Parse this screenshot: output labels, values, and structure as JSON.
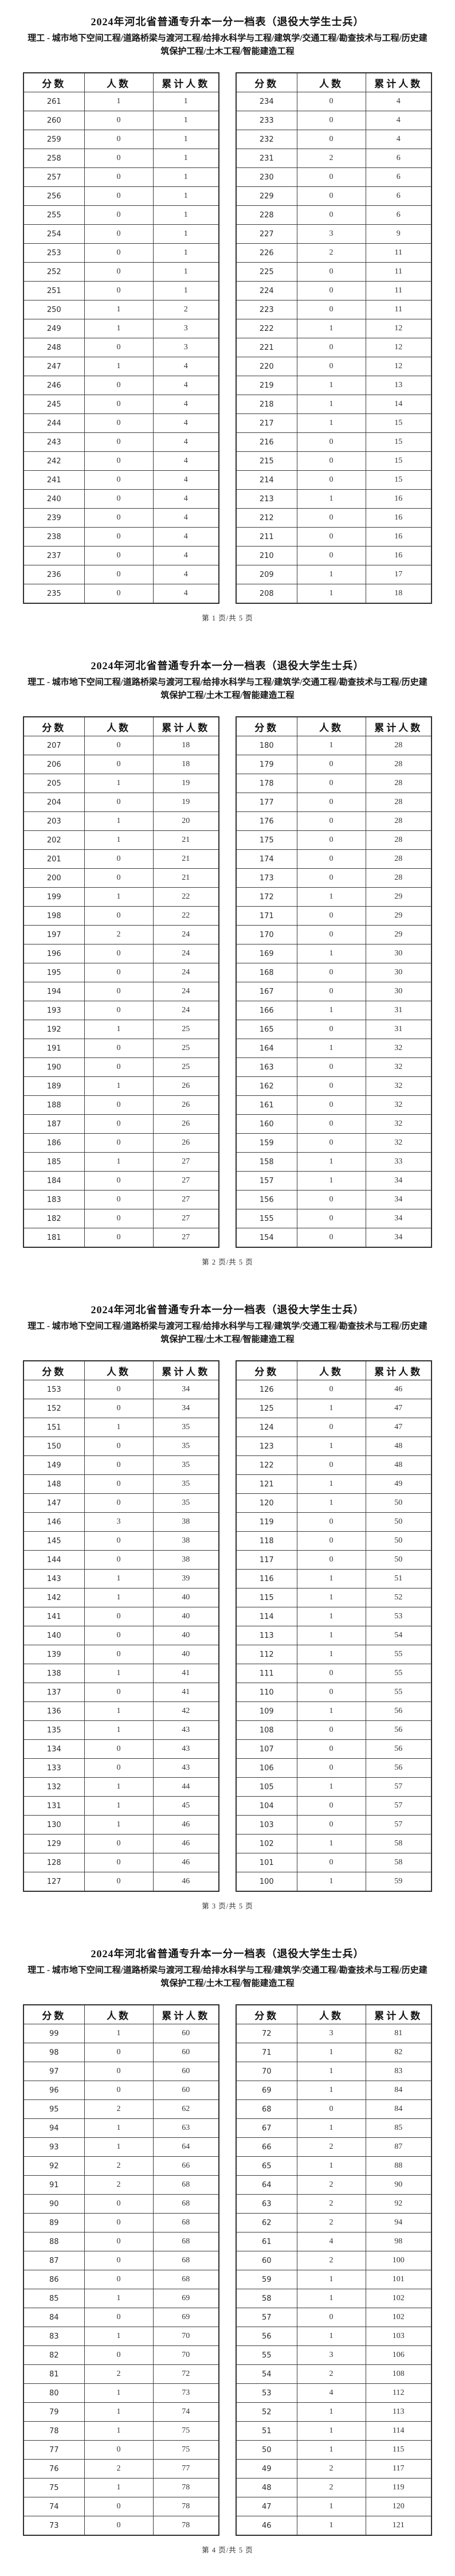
{
  "document": {
    "title": "2024年河北省普通专升本一分一档表（退役大学生士兵）",
    "subtitle": "理工 - 城市地下空间工程/道路桥梁与渡河工程/给排水科学与工程/建筑学/交通工程/勘查技术与工程/历史建筑保护工程/土木工程/智能建造工程",
    "columns": [
      "分数",
      "人数",
      "累计人数"
    ]
  },
  "pages": [
    {
      "footer": "第 1 页/共 5 页",
      "left_rows": [
        [
          261,
          1,
          1
        ],
        [
          260,
          0,
          1
        ],
        [
          259,
          0,
          1
        ],
        [
          258,
          0,
          1
        ],
        [
          257,
          0,
          1
        ],
        [
          256,
          0,
          1
        ],
        [
          255,
          0,
          1
        ],
        [
          254,
          0,
          1
        ],
        [
          253,
          0,
          1
        ],
        [
          252,
          0,
          1
        ],
        [
          251,
          0,
          1
        ],
        [
          250,
          1,
          2
        ],
        [
          249,
          1,
          3
        ],
        [
          248,
          0,
          3
        ],
        [
          247,
          1,
          4
        ],
        [
          246,
          0,
          4
        ],
        [
          245,
          0,
          4
        ],
        [
          244,
          0,
          4
        ],
        [
          243,
          0,
          4
        ],
        [
          242,
          0,
          4
        ],
        [
          241,
          0,
          4
        ],
        [
          240,
          0,
          4
        ],
        [
          239,
          0,
          4
        ],
        [
          238,
          0,
          4
        ],
        [
          237,
          0,
          4
        ],
        [
          236,
          0,
          4
        ],
        [
          235,
          0,
          4
        ]
      ],
      "right_rows": [
        [
          234,
          0,
          4
        ],
        [
          233,
          0,
          4
        ],
        [
          232,
          0,
          4
        ],
        [
          231,
          2,
          6
        ],
        [
          230,
          0,
          6
        ],
        [
          229,
          0,
          6
        ],
        [
          228,
          0,
          6
        ],
        [
          227,
          3,
          9
        ],
        [
          226,
          2,
          11
        ],
        [
          225,
          0,
          11
        ],
        [
          224,
          0,
          11
        ],
        [
          223,
          0,
          11
        ],
        [
          222,
          1,
          12
        ],
        [
          221,
          0,
          12
        ],
        [
          220,
          0,
          12
        ],
        [
          219,
          1,
          13
        ],
        [
          218,
          1,
          14
        ],
        [
          217,
          1,
          15
        ],
        [
          216,
          0,
          15
        ],
        [
          215,
          0,
          15
        ],
        [
          214,
          0,
          15
        ],
        [
          213,
          1,
          16
        ],
        [
          212,
          0,
          16
        ],
        [
          211,
          0,
          16
        ],
        [
          210,
          0,
          16
        ],
        [
          209,
          1,
          17
        ],
        [
          208,
          1,
          18
        ]
      ]
    },
    {
      "footer": "第 2 页/共 5 页",
      "left_rows": [
        [
          207,
          0,
          18
        ],
        [
          206,
          0,
          18
        ],
        [
          205,
          1,
          19
        ],
        [
          204,
          0,
          19
        ],
        [
          203,
          1,
          20
        ],
        [
          202,
          1,
          21
        ],
        [
          201,
          0,
          21
        ],
        [
          200,
          0,
          21
        ],
        [
          199,
          1,
          22
        ],
        [
          198,
          0,
          22
        ],
        [
          197,
          2,
          24
        ],
        [
          196,
          0,
          24
        ],
        [
          195,
          0,
          24
        ],
        [
          194,
          0,
          24
        ],
        [
          193,
          0,
          24
        ],
        [
          192,
          1,
          25
        ],
        [
          191,
          0,
          25
        ],
        [
          190,
          0,
          25
        ],
        [
          189,
          1,
          26
        ],
        [
          188,
          0,
          26
        ],
        [
          187,
          0,
          26
        ],
        [
          186,
          0,
          26
        ],
        [
          185,
          1,
          27
        ],
        [
          184,
          0,
          27
        ],
        [
          183,
          0,
          27
        ],
        [
          182,
          0,
          27
        ],
        [
          181,
          0,
          27
        ]
      ],
      "right_rows": [
        [
          180,
          1,
          28
        ],
        [
          179,
          0,
          28
        ],
        [
          178,
          0,
          28
        ],
        [
          177,
          0,
          28
        ],
        [
          176,
          0,
          28
        ],
        [
          175,
          0,
          28
        ],
        [
          174,
          0,
          28
        ],
        [
          173,
          0,
          28
        ],
        [
          172,
          1,
          29
        ],
        [
          171,
          0,
          29
        ],
        [
          170,
          0,
          29
        ],
        [
          169,
          1,
          30
        ],
        [
          168,
          0,
          30
        ],
        [
          167,
          0,
          30
        ],
        [
          166,
          1,
          31
        ],
        [
          165,
          0,
          31
        ],
        [
          164,
          1,
          32
        ],
        [
          163,
          0,
          32
        ],
        [
          162,
          0,
          32
        ],
        [
          161,
          0,
          32
        ],
        [
          160,
          0,
          32
        ],
        [
          159,
          0,
          32
        ],
        [
          158,
          1,
          33
        ],
        [
          157,
          1,
          34
        ],
        [
          156,
          0,
          34
        ],
        [
          155,
          0,
          34
        ],
        [
          154,
          0,
          34
        ]
      ]
    },
    {
      "footer": "第 3 页/共 5 页",
      "left_rows": [
        [
          153,
          0,
          34
        ],
        [
          152,
          0,
          34
        ],
        [
          151,
          1,
          35
        ],
        [
          150,
          0,
          35
        ],
        [
          149,
          0,
          35
        ],
        [
          148,
          0,
          35
        ],
        [
          147,
          0,
          35
        ],
        [
          146,
          3,
          38
        ],
        [
          145,
          0,
          38
        ],
        [
          144,
          0,
          38
        ],
        [
          143,
          1,
          39
        ],
        [
          142,
          1,
          40
        ],
        [
          141,
          0,
          40
        ],
        [
          140,
          0,
          40
        ],
        [
          139,
          0,
          40
        ],
        [
          138,
          1,
          41
        ],
        [
          137,
          0,
          41
        ],
        [
          136,
          1,
          42
        ],
        [
          135,
          1,
          43
        ],
        [
          134,
          0,
          43
        ],
        [
          133,
          0,
          43
        ],
        [
          132,
          1,
          44
        ],
        [
          131,
          1,
          45
        ],
        [
          130,
          1,
          46
        ],
        [
          129,
          0,
          46
        ],
        [
          128,
          0,
          46
        ],
        [
          127,
          0,
          46
        ]
      ],
      "right_rows": [
        [
          126,
          0,
          46
        ],
        [
          125,
          1,
          47
        ],
        [
          124,
          0,
          47
        ],
        [
          123,
          1,
          48
        ],
        [
          122,
          0,
          48
        ],
        [
          121,
          1,
          49
        ],
        [
          120,
          1,
          50
        ],
        [
          119,
          0,
          50
        ],
        [
          118,
          0,
          50
        ],
        [
          117,
          0,
          50
        ],
        [
          116,
          1,
          51
        ],
        [
          115,
          1,
          52
        ],
        [
          114,
          1,
          53
        ],
        [
          113,
          1,
          54
        ],
        [
          112,
          1,
          55
        ],
        [
          111,
          0,
          55
        ],
        [
          110,
          0,
          55
        ],
        [
          109,
          1,
          56
        ],
        [
          108,
          0,
          56
        ],
        [
          107,
          0,
          56
        ],
        [
          106,
          0,
          56
        ],
        [
          105,
          1,
          57
        ],
        [
          104,
          0,
          57
        ],
        [
          103,
          0,
          57
        ],
        [
          102,
          1,
          58
        ],
        [
          101,
          0,
          58
        ],
        [
          100,
          1,
          59
        ]
      ]
    },
    {
      "footer": "第 4 页/共 5 页",
      "left_rows": [
        [
          99,
          1,
          60
        ],
        [
          98,
          0,
          60
        ],
        [
          97,
          0,
          60
        ],
        [
          96,
          0,
          60
        ],
        [
          95,
          2,
          62
        ],
        [
          94,
          1,
          63
        ],
        [
          93,
          1,
          64
        ],
        [
          92,
          2,
          66
        ],
        [
          91,
          2,
          68
        ],
        [
          90,
          0,
          68
        ],
        [
          89,
          0,
          68
        ],
        [
          88,
          0,
          68
        ],
        [
          87,
          0,
          68
        ],
        [
          86,
          0,
          68
        ],
        [
          85,
          1,
          69
        ],
        [
          84,
          0,
          69
        ],
        [
          83,
          1,
          70
        ],
        [
          82,
          0,
          70
        ],
        [
          81,
          2,
          72
        ],
        [
          80,
          1,
          73
        ],
        [
          79,
          1,
          74
        ],
        [
          78,
          1,
          75
        ],
        [
          77,
          0,
          75
        ],
        [
          76,
          2,
          77
        ],
        [
          75,
          1,
          78
        ],
        [
          74,
          0,
          78
        ],
        [
          73,
          0,
          78
        ]
      ],
      "right_rows": [
        [
          72,
          3,
          81
        ],
        [
          71,
          1,
          82
        ],
        [
          70,
          1,
          83
        ],
        [
          69,
          1,
          84
        ],
        [
          68,
          0,
          84
        ],
        [
          67,
          1,
          85
        ],
        [
          66,
          2,
          87
        ],
        [
          65,
          1,
          88
        ],
        [
          64,
          2,
          90
        ],
        [
          63,
          2,
          92
        ],
        [
          62,
          2,
          94
        ],
        [
          61,
          4,
          98
        ],
        [
          60,
          2,
          100
        ],
        [
          59,
          1,
          101
        ],
        [
          58,
          1,
          102
        ],
        [
          57,
          0,
          102
        ],
        [
          56,
          1,
          103
        ],
        [
          55,
          3,
          106
        ],
        [
          54,
          2,
          108
        ],
        [
          53,
          4,
          112
        ],
        [
          52,
          1,
          113
        ],
        [
          51,
          1,
          114
        ],
        [
          50,
          1,
          115
        ],
        [
          49,
          2,
          117
        ],
        [
          48,
          2,
          119
        ],
        [
          47,
          1,
          120
        ],
        [
          46,
          1,
          121
        ]
      ]
    }
  ]
}
